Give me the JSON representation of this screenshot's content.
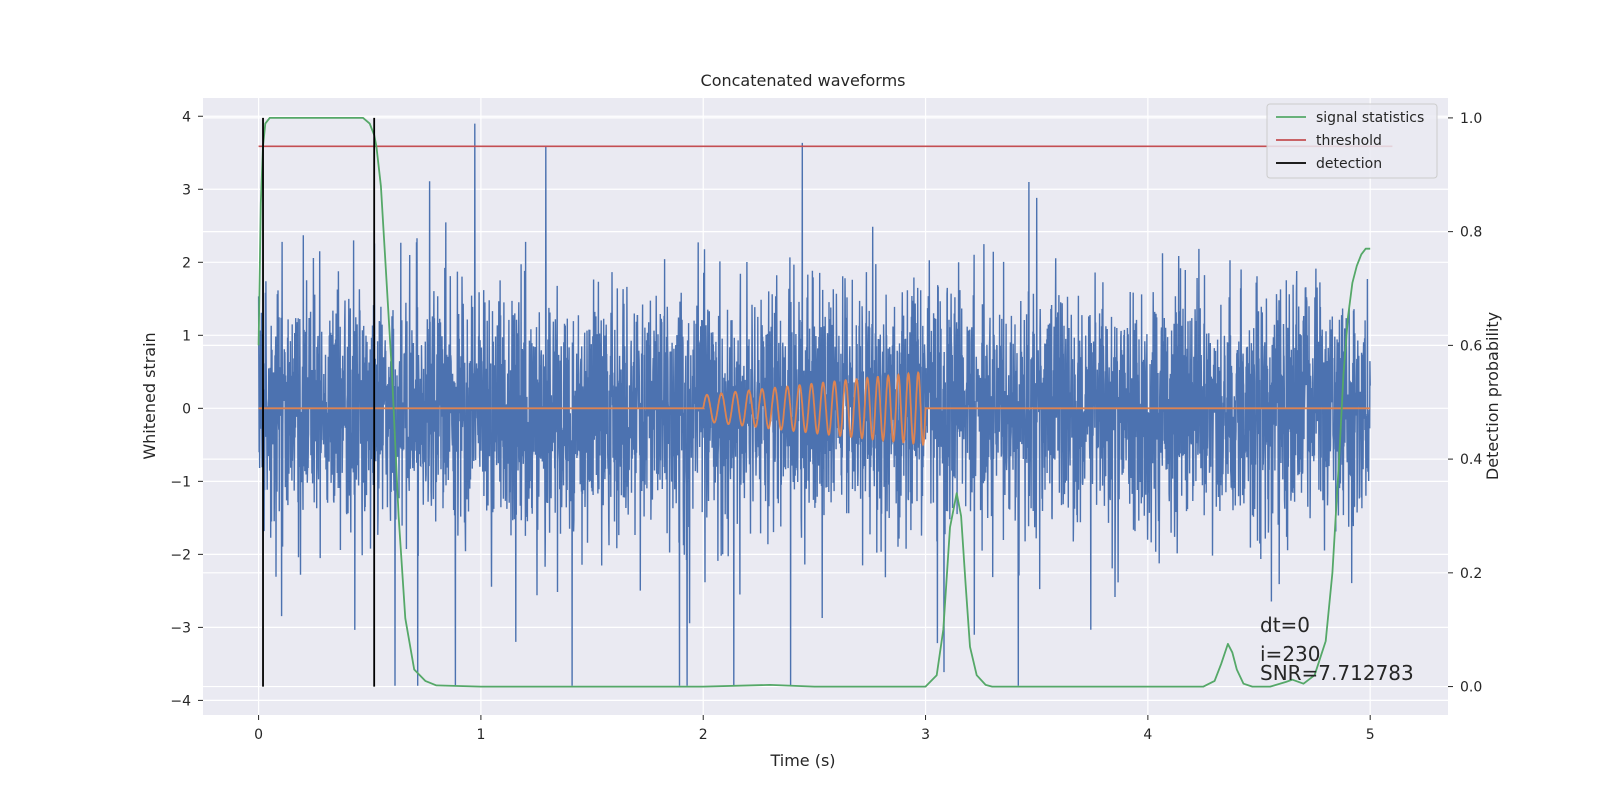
{
  "chart_data": {
    "type": "line",
    "title": "Concatenated waveforms",
    "xlabel": "Time (s)",
    "ylabel": "Whitened strain",
    "ylabel_right": "Detection probability",
    "xlim": [
      -0.25,
      5.35
    ],
    "ylim": [
      -4.2,
      4.25
    ],
    "ylim_right": [
      -0.05,
      1.035
    ],
    "x_ticks": [
      0,
      1,
      2,
      3,
      4,
      5
    ],
    "y_ticks": [
      4,
      3,
      2,
      1,
      0,
      -1,
      -2,
      -3,
      -4
    ],
    "y_ticks_right": [
      1.0,
      0.8,
      0.6,
      0.4,
      0.2,
      0.0
    ],
    "grid": true,
    "legend_position": "top-right",
    "colors": {
      "background": "#eaeaf2",
      "strain": "#4c72b0",
      "injected_waveform": "#dd8452",
      "signal_statistics": "#55a868",
      "threshold": "#c44e52",
      "detection": "#000000"
    },
    "series": [
      {
        "name": "signal statistics",
        "axis": "right",
        "x": [
          0.0,
          0.01,
          0.02,
          0.03,
          0.05,
          0.08,
          0.12,
          0.2,
          0.3,
          0.4,
          0.47,
          0.5,
          0.52,
          0.53,
          0.55,
          0.57,
          0.6,
          0.63,
          0.66,
          0.7,
          0.75,
          0.8,
          1.0,
          1.5,
          2.0,
          2.3,
          2.5,
          2.8,
          3.0,
          3.05,
          3.08,
          3.11,
          3.14,
          3.16,
          3.18,
          3.2,
          3.23,
          3.27,
          3.3,
          3.5,
          4.0,
          4.25,
          4.3,
          4.33,
          4.36,
          4.38,
          4.4,
          4.43,
          4.47,
          4.55,
          4.62,
          4.65,
          4.7,
          4.75,
          4.8,
          4.83,
          4.86,
          4.88,
          4.9,
          4.92,
          4.94,
          4.96,
          4.98,
          5.0
        ],
        "values": [
          0.6,
          0.85,
          0.95,
          0.99,
          1.0,
          1.0,
          1.0,
          1.0,
          1.0,
          1.0,
          1.0,
          0.99,
          0.97,
          0.95,
          0.88,
          0.75,
          0.55,
          0.3,
          0.12,
          0.03,
          0.01,
          0.002,
          0.0,
          0.0,
          0.0,
          0.003,
          0.0,
          0.0,
          0.0,
          0.02,
          0.1,
          0.28,
          0.34,
          0.3,
          0.18,
          0.07,
          0.02,
          0.003,
          0.0,
          0.0,
          0.0,
          0.0,
          0.01,
          0.04,
          0.075,
          0.06,
          0.03,
          0.005,
          0.0,
          0.0,
          0.008,
          0.012,
          0.005,
          0.02,
          0.08,
          0.2,
          0.4,
          0.55,
          0.65,
          0.71,
          0.74,
          0.76,
          0.77,
          0.77
        ]
      },
      {
        "name": "threshold",
        "axis": "right",
        "x": [
          0.0,
          5.1
        ],
        "values": [
          0.95,
          0.95
        ]
      },
      {
        "name": "detection",
        "axis": "right",
        "vlines": [
          0.02,
          0.52
        ],
        "range": [
          0.0,
          1.0
        ]
      }
    ],
    "annotations": [
      "dt=0",
      "i=230",
      "SNR=7.712783"
    ]
  }
}
